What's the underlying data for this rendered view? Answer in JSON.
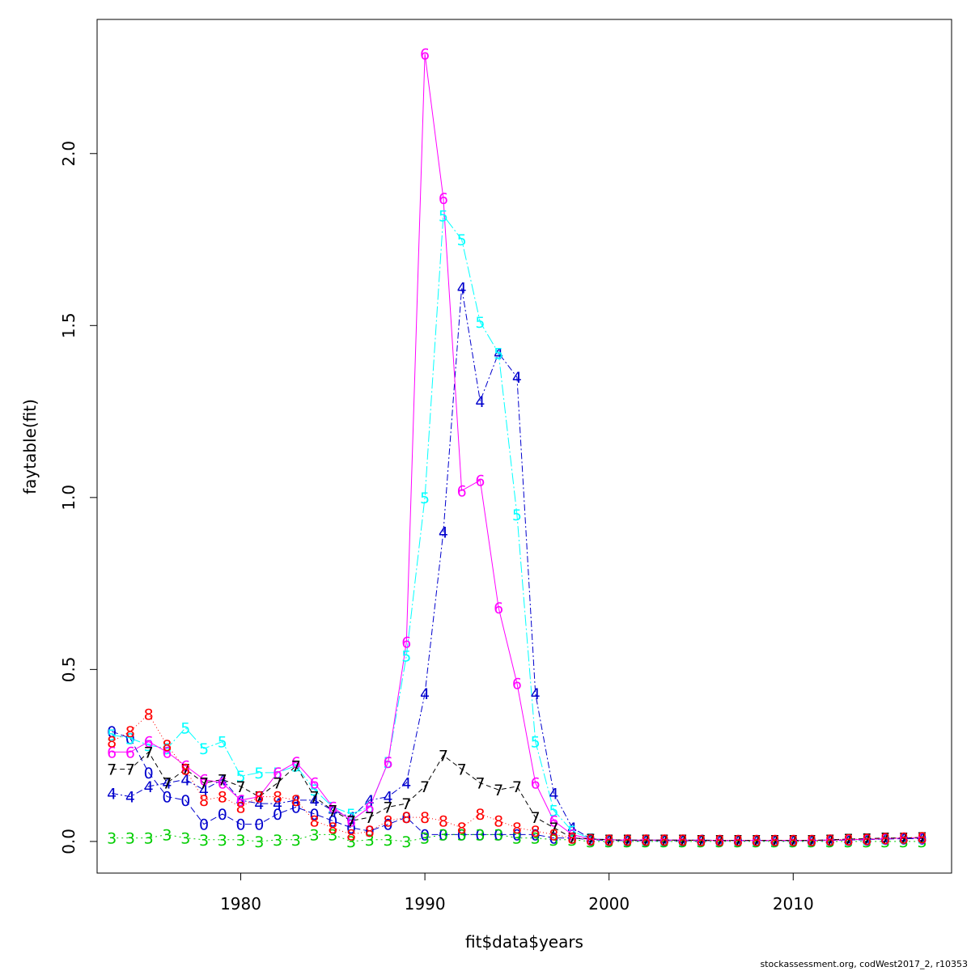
{
  "footer": "stockassessment.org, codWest2017_2, r10353",
  "chart_data": {
    "type": "line",
    "xlabel": "fit$data$years",
    "ylabel": "faytable(fit)",
    "xlim": [
      1972.2,
      2018.6
    ],
    "ylim": [
      -0.092,
      2.39
    ],
    "x_ticks": [
      1980,
      1990,
      2000,
      2010
    ],
    "y_ticks": [
      0.0,
      0.5,
      1.0,
      1.5,
      2.0
    ],
    "y_tick_labels": [
      "0.0",
      "0.5",
      "1.0",
      "1.5",
      "2.0"
    ],
    "grid": false,
    "legend": "none",
    "x": [
      1973,
      1974,
      1975,
      1976,
      1977,
      1978,
      1979,
      1980,
      1981,
      1982,
      1983,
      1984,
      1985,
      1986,
      1987,
      1988,
      1989,
      1990,
      1991,
      1992,
      1993,
      1994,
      1995,
      1996,
      1997,
      1998,
      1999,
      2000,
      2001,
      2002,
      2003,
      2004,
      2005,
      2006,
      2007,
      2008,
      2009,
      2010,
      2011,
      2012,
      2013,
      2014,
      2015,
      2016,
      2017
    ],
    "series": [
      {
        "name": "0",
        "color": "#0000CD",
        "dash": "8,4",
        "values": [
          0.32,
          0.3,
          0.2,
          0.13,
          0.12,
          0.05,
          0.08,
          0.05,
          0.05,
          0.08,
          0.1,
          0.08,
          0.06,
          0.04,
          0.03,
          0.05,
          0.07,
          0.02,
          0.02,
          0.02,
          0.02,
          0.02,
          0.02,
          0.02,
          0.01,
          0.01,
          0.005,
          0.003,
          0.002,
          0.002,
          0.002,
          0.002,
          0.002,
          0.002,
          0.002,
          0.002,
          0.002,
          0.002,
          0.002,
          0.003,
          0.004,
          0.005,
          0.007,
          0.008,
          0.008
        ]
      },
      {
        "name": "3",
        "color": "#00CD00",
        "dash": "2,4",
        "values": [
          0.01,
          0.01,
          0.01,
          0.02,
          0.01,
          0.005,
          0.005,
          0.005,
          0.0,
          0.005,
          0.005,
          0.02,
          0.02,
          0.0,
          0.005,
          0.005,
          0.0,
          0.01,
          0.02,
          0.02,
          0.02,
          0.02,
          0.01,
          0.01,
          0.005,
          0.005,
          0.0,
          0.0,
          0.0,
          0.0,
          0.0,
          0.0,
          0.0,
          0.0,
          0.0,
          0.0,
          0.0,
          0.0,
          0.0,
          0.0,
          0.0,
          0.0,
          0.0,
          0.0,
          0.0
        ]
      },
      {
        "name": "4",
        "color": "#0000CD",
        "dash": "8,3,2,3",
        "values": [
          0.14,
          0.13,
          0.16,
          0.17,
          0.18,
          0.15,
          0.18,
          0.12,
          0.11,
          0.11,
          0.12,
          0.12,
          0.09,
          0.07,
          0.12,
          0.13,
          0.17,
          0.43,
          0.9,
          1.61,
          1.28,
          1.42,
          1.35,
          0.43,
          0.14,
          0.04,
          0.008,
          0.005,
          0.004,
          0.004,
          0.004,
          0.004,
          0.004,
          0.003,
          0.003,
          0.003,
          0.003,
          0.003,
          0.003,
          0.004,
          0.005,
          0.006,
          0.008,
          0.01,
          0.01
        ]
      },
      {
        "name": "5",
        "color": "#00FFFF",
        "dash": "14,3,2,3",
        "values": [
          0.31,
          0.3,
          0.28,
          0.27,
          0.33,
          0.27,
          0.29,
          0.19,
          0.2,
          0.2,
          0.22,
          0.15,
          0.1,
          0.08,
          0.1,
          0.23,
          0.54,
          1.0,
          1.82,
          1.75,
          1.51,
          1.42,
          0.95,
          0.29,
          0.09,
          0.03,
          0.008,
          0.005,
          0.004,
          0.004,
          0.004,
          0.004,
          0.003,
          0.003,
          0.003,
          0.003,
          0.003,
          0.003,
          0.003,
          0.004,
          0.005,
          0.006,
          0.008,
          0.01,
          0.01
        ]
      },
      {
        "name": "6",
        "color": "#FF00FF",
        "dash": "",
        "values": [
          0.26,
          0.26,
          0.29,
          0.26,
          0.22,
          0.18,
          0.17,
          0.12,
          0.13,
          0.2,
          0.23,
          0.17,
          0.1,
          0.06,
          0.1,
          0.23,
          0.58,
          2.29,
          1.87,
          1.02,
          1.05,
          0.68,
          0.46,
          0.17,
          0.06,
          0.02,
          0.007,
          0.005,
          0.004,
          0.004,
          0.004,
          0.004,
          0.003,
          0.003,
          0.003,
          0.003,
          0.003,
          0.003,
          0.003,
          0.004,
          0.005,
          0.006,
          0.008,
          0.01,
          0.01
        ]
      },
      {
        "name": "7",
        "color": "#000000",
        "dash": "6,4",
        "values": [
          0.21,
          0.21,
          0.26,
          0.17,
          0.21,
          0.17,
          0.18,
          0.16,
          0.13,
          0.17,
          0.22,
          0.13,
          0.09,
          0.06,
          0.07,
          0.1,
          0.11,
          0.16,
          0.25,
          0.21,
          0.17,
          0.15,
          0.16,
          0.07,
          0.04,
          0.01,
          0.007,
          0.005,
          0.004,
          0.004,
          0.004,
          0.004,
          0.003,
          0.003,
          0.003,
          0.003,
          0.003,
          0.003,
          0.003,
          0.005,
          0.007,
          0.008,
          0.01,
          0.01,
          0.012
        ]
      },
      {
        "name": "8",
        "color": "#FF0000",
        "dash": "1,3",
        "values": [
          0.29,
          0.32,
          0.37,
          0.28,
          0.21,
          0.12,
          0.13,
          0.1,
          0.13,
          0.13,
          0.12,
          0.06,
          0.04,
          0.02,
          0.03,
          0.06,
          0.07,
          0.07,
          0.06,
          0.04,
          0.08,
          0.06,
          0.04,
          0.03,
          0.02,
          0.01,
          0.006,
          0.005,
          0.004,
          0.004,
          0.004,
          0.004,
          0.003,
          0.003,
          0.003,
          0.003,
          0.003,
          0.003,
          0.003,
          0.004,
          0.006,
          0.007,
          0.009,
          0.01,
          0.012
        ]
      }
    ]
  }
}
